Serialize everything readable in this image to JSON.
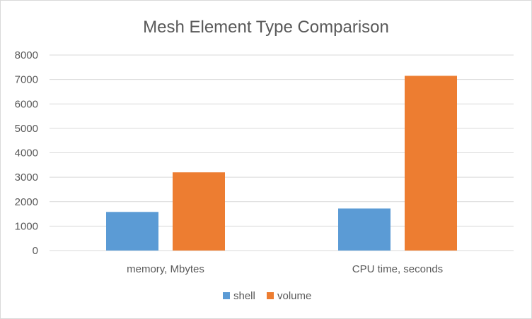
{
  "chart_data": {
    "type": "bar",
    "title": "Mesh Element Type Comparison",
    "categories": [
      "memory, Mbytes",
      "CPU time, seconds"
    ],
    "series": [
      {
        "name": "shell",
        "values": [
          1580,
          1720
        ],
        "color": "#5b9bd5"
      },
      {
        "name": "volume",
        "values": [
          3200,
          7150
        ],
        "color": "#ed7d31"
      }
    ],
    "ylim": [
      0,
      8000
    ],
    "yticks": [
      0,
      1000,
      2000,
      3000,
      4000,
      5000,
      6000,
      7000,
      8000
    ],
    "grid": true,
    "legend": "bottom"
  }
}
